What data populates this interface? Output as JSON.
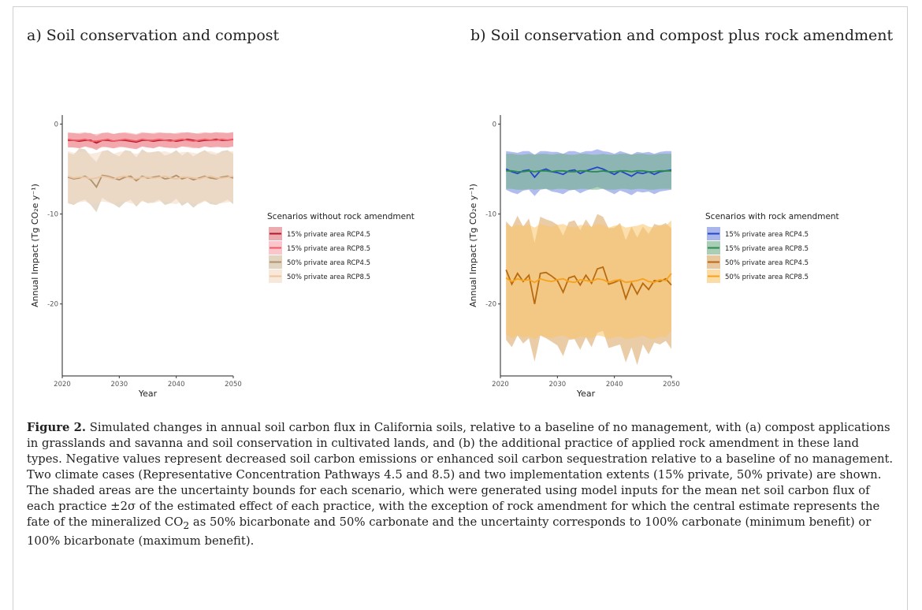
{
  "panel_a_title": "a) Soil conservation and compost",
  "panel_b_title": "b) Soil conservation and compost plus rock amendment",
  "caption": {
    "label": "Figure 2.",
    "text_1": " Simulated changes in annual soil carbon flux in California soils, relative to a baseline of no management, with (a) compost applications in grasslands and savanna and soil conservation in cultivated lands, and (b) the additional practice of applied rock amendment in these land types. Negative values represent decreased soil carbon emissions or enhanced soil carbon sequestration relative to a baseline of no management. Two climate cases (Representative Concentration Pathways 4.5 and 8.5) and two implementation extents (15% private, 50% private) are shown. The shaded areas are the uncertainty bounds for each scenario, which were generated using model inputs for the mean net soil carbon flux of each practice ±2σ of the estimated effect of each practice, with the exception of rock amendment for which the central estimate represents the fate of the mineralized CO",
    "sub": "2",
    "text_2": " as 50% bicarbonate and 50% carbonate and the uncertainty corresponds to 100% carbonate (minimum benefit) or 100% bicarbonate (maximum benefit)."
  },
  "chart_data": [
    {
      "type": "line",
      "xlabel": "Year",
      "ylabel": "Annual Impact (Tg CO₂e y⁻¹)",
      "xlim": [
        2020,
        2050
      ],
      "ylim": [
        -28,
        1
      ],
      "xticks": [
        2020,
        2030,
        2040,
        2050
      ],
      "yticks": [
        0,
        -10,
        -20
      ],
      "grid": false,
      "legend_title": "Scenarios without rock amendment",
      "legend_position": "right",
      "x": [
        2021,
        2022,
        2023,
        2024,
        2025,
        2026,
        2027,
        2028,
        2029,
        2030,
        2031,
        2032,
        2033,
        2034,
        2035,
        2036,
        2037,
        2038,
        2039,
        2040,
        2041,
        2042,
        2043,
        2044,
        2045,
        2046,
        2047,
        2048,
        2049,
        2050
      ],
      "series": [
        {
          "name": "15% private area RCP4.5",
          "color": "#b2182b",
          "band_color": "#e0737a",
          "values": [
            -1.8,
            -1.8,
            -1.9,
            -1.8,
            -1.8,
            -2.1,
            -1.8,
            -1.8,
            -1.9,
            -1.8,
            -1.8,
            -1.9,
            -2.0,
            -1.8,
            -1.8,
            -1.9,
            -1.8,
            -1.8,
            -1.8,
            -1.9,
            -1.8,
            -1.7,
            -1.8,
            -1.9,
            -1.8,
            -1.8,
            -1.7,
            -1.8,
            -1.8,
            -1.7
          ],
          "lower": [
            -2.6,
            -2.6,
            -2.7,
            -2.5,
            -2.6,
            -2.9,
            -2.5,
            -2.6,
            -2.7,
            -2.5,
            -2.6,
            -2.7,
            -2.8,
            -2.5,
            -2.6,
            -2.7,
            -2.5,
            -2.6,
            -2.6,
            -2.7,
            -2.5,
            -2.5,
            -2.6,
            -2.7,
            -2.5,
            -2.6,
            -2.5,
            -2.6,
            -2.6,
            -2.5
          ],
          "upper": [
            -1.0,
            -1.0,
            -1.1,
            -1.0,
            -1.0,
            -1.3,
            -1.0,
            -1.0,
            -1.1,
            -1.0,
            -1.0,
            -1.1,
            -1.2,
            -1.0,
            -1.0,
            -1.1,
            -1.0,
            -1.0,
            -1.0,
            -1.1,
            -1.0,
            -0.9,
            -1.0,
            -1.1,
            -1.0,
            -1.0,
            -0.9,
            -1.0,
            -1.0,
            -0.9
          ]
        },
        {
          "name": "15% private area RCP8.5",
          "color": "#f05a66",
          "band_color": "#f7a0a8",
          "values": [
            -1.7,
            -1.8,
            -1.8,
            -1.7,
            -1.9,
            -1.9,
            -1.8,
            -1.7,
            -1.9,
            -1.8,
            -1.7,
            -1.8,
            -1.9,
            -1.7,
            -1.8,
            -1.8,
            -1.7,
            -1.8,
            -1.9,
            -1.8,
            -1.7,
            -1.8,
            -1.9,
            -1.8,
            -1.7,
            -1.8,
            -1.8,
            -1.7,
            -1.8,
            -1.7
          ],
          "lower": [
            -2.5,
            -2.6,
            -2.6,
            -2.5,
            -2.7,
            -2.7,
            -2.6,
            -2.5,
            -2.7,
            -2.6,
            -2.5,
            -2.6,
            -2.7,
            -2.5,
            -2.6,
            -2.6,
            -2.5,
            -2.6,
            -2.7,
            -2.6,
            -2.5,
            -2.6,
            -2.7,
            -2.6,
            -2.5,
            -2.6,
            -2.6,
            -2.5,
            -2.6,
            -2.5
          ],
          "upper": [
            -0.9,
            -1.0,
            -1.0,
            -0.9,
            -1.1,
            -1.1,
            -1.0,
            -0.9,
            -1.1,
            -1.0,
            -0.9,
            -1.0,
            -1.1,
            -0.9,
            -1.0,
            -1.0,
            -0.9,
            -1.0,
            -1.1,
            -1.0,
            -0.9,
            -1.0,
            -1.1,
            -1.0,
            -0.9,
            -1.0,
            -1.0,
            -0.9,
            -1.0,
            -0.9
          ]
        },
        {
          "name": "50% private area RCP4.5",
          "color": "#b0926a",
          "band_color": "#cdb99a",
          "values": [
            -5.9,
            -6.1,
            -6.0,
            -5.8,
            -6.2,
            -7.0,
            -5.7,
            -5.8,
            -6.0,
            -6.2,
            -5.9,
            -5.8,
            -6.3,
            -5.8,
            -6.0,
            -5.9,
            -5.8,
            -6.1,
            -6.0,
            -5.7,
            -6.1,
            -5.9,
            -6.2,
            -6.0,
            -5.8,
            -6.0,
            -6.1,
            -5.9,
            -5.8,
            -6.0
          ],
          "lower": [
            -8.8,
            -9.0,
            -8.6,
            -8.4,
            -9.0,
            -9.8,
            -8.2,
            -8.6,
            -8.9,
            -9.3,
            -8.7,
            -8.4,
            -9.2,
            -8.5,
            -8.8,
            -8.7,
            -8.4,
            -9.0,
            -8.8,
            -8.3,
            -9.1,
            -8.7,
            -9.3,
            -8.8,
            -8.5,
            -8.9,
            -9.0,
            -8.7,
            -8.4,
            -8.9
          ],
          "upper": [
            -3.2,
            -3.4,
            -2.7,
            -2.8,
            -3.6,
            -4.2,
            -3.0,
            -2.9,
            -3.3,
            -3.6,
            -2.9,
            -3.0,
            -3.7,
            -2.8,
            -3.2,
            -3.1,
            -3.0,
            -3.5,
            -3.3,
            -2.9,
            -3.5,
            -3.1,
            -3.6,
            -3.2,
            -2.9,
            -3.3,
            -3.4,
            -3.0,
            -2.9,
            -3.3
          ]
        },
        {
          "name": "50% private area RCP8.5",
          "color": "#ecc4a2",
          "band_color": "#f3d8c2",
          "values": [
            -5.8,
            -6.0,
            -5.9,
            -5.9,
            -6.1,
            -6.0,
            -5.8,
            -5.9,
            -6.1,
            -5.9,
            -5.8,
            -6.0,
            -6.1,
            -5.9,
            -5.9,
            -6.0,
            -5.9,
            -5.8,
            -6.0,
            -6.1,
            -5.9,
            -5.9,
            -6.0,
            -6.1,
            -5.9,
            -5.8,
            -6.0,
            -6.0,
            -5.9,
            -5.8
          ],
          "lower": [
            -8.6,
            -8.8,
            -8.7,
            -8.6,
            -8.9,
            -8.8,
            -8.6,
            -8.7,
            -8.9,
            -8.6,
            -8.6,
            -8.8,
            -8.9,
            -8.6,
            -8.7,
            -8.8,
            -8.6,
            -8.6,
            -8.8,
            -8.9,
            -8.6,
            -8.7,
            -8.8,
            -8.9,
            -8.6,
            -8.6,
            -8.8,
            -8.8,
            -8.7,
            -8.6
          ],
          "upper": [
            -3.0,
            -3.2,
            -3.1,
            -3.1,
            -3.3,
            -3.2,
            -3.0,
            -3.1,
            -3.3,
            -3.1,
            -3.0,
            -3.2,
            -3.3,
            -3.1,
            -3.1,
            -3.2,
            -3.1,
            -3.0,
            -3.2,
            -3.3,
            -3.1,
            -3.1,
            -3.2,
            -3.3,
            -3.1,
            -3.0,
            -3.2,
            -3.2,
            -3.1,
            -3.0
          ]
        }
      ]
    },
    {
      "type": "line",
      "xlabel": "Year",
      "ylabel": "Annual Impact (Tg CO₂e y⁻¹)",
      "xlim": [
        2020,
        2050
      ],
      "ylim": [
        -28,
        1
      ],
      "xticks": [
        2020,
        2030,
        2040,
        2050
      ],
      "yticks": [
        0,
        -10,
        -20
      ],
      "grid": false,
      "legend_title": "Scenarios with rock amendment",
      "legend_position": "right",
      "x": [
        2021,
        2022,
        2023,
        2024,
        2025,
        2026,
        2027,
        2028,
        2029,
        2030,
        2031,
        2032,
        2033,
        2034,
        2035,
        2036,
        2037,
        2038,
        2039,
        2040,
        2041,
        2042,
        2043,
        2044,
        2045,
        2046,
        2047,
        2048,
        2049,
        2050
      ],
      "series": [
        {
          "name": "15% private area RCP4.5",
          "color": "#2447c8",
          "band_color": "#6f86e0",
          "values": [
            -5.0,
            -5.3,
            -5.5,
            -5.2,
            -5.1,
            -5.9,
            -5.2,
            -5.0,
            -5.3,
            -5.4,
            -5.6,
            -5.2,
            -5.1,
            -5.5,
            -5.2,
            -5.0,
            -4.8,
            -5.0,
            -5.3,
            -5.6,
            -5.2,
            -5.5,
            -5.8,
            -5.4,
            -5.5,
            -5.3,
            -5.6,
            -5.3,
            -5.2,
            -5.1
          ],
          "lower": [
            -7.3,
            -7.6,
            -7.8,
            -7.4,
            -7.3,
            -8.0,
            -7.3,
            -7.2,
            -7.5,
            -7.6,
            -7.8,
            -7.4,
            -7.3,
            -7.7,
            -7.4,
            -7.2,
            -7.0,
            -7.2,
            -7.5,
            -7.8,
            -7.4,
            -7.6,
            -7.9,
            -7.5,
            -7.6,
            -7.5,
            -7.8,
            -7.5,
            -7.4,
            -7.3
          ],
          "upper": [
            -3.0,
            -3.1,
            -3.2,
            -3.0,
            -3.0,
            -3.4,
            -3.0,
            -3.0,
            -3.1,
            -3.1,
            -3.3,
            -3.0,
            -3.0,
            -3.2,
            -3.0,
            -3.0,
            -2.8,
            -3.0,
            -3.1,
            -3.3,
            -3.0,
            -3.2,
            -3.4,
            -3.1,
            -3.2,
            -3.1,
            -3.3,
            -3.1,
            -3.0,
            -3.0
          ]
        },
        {
          "name": "15% private area RCP8.5",
          "color": "#2b8a4f",
          "band_color": "#6fae84",
          "values": [
            -5.2,
            -5.2,
            -5.3,
            -5.3,
            -5.2,
            -5.3,
            -5.2,
            -5.2,
            -5.3,
            -5.2,
            -5.2,
            -5.3,
            -5.3,
            -5.2,
            -5.2,
            -5.3,
            -5.3,
            -5.2,
            -5.3,
            -5.3,
            -5.2,
            -5.2,
            -5.3,
            -5.2,
            -5.2,
            -5.3,
            -5.3,
            -5.2,
            -5.2,
            -5.2
          ],
          "lower": [
            -7.2,
            -7.2,
            -7.3,
            -7.3,
            -7.2,
            -7.3,
            -7.2,
            -7.2,
            -7.3,
            -7.2,
            -7.2,
            -7.3,
            -7.3,
            -7.2,
            -7.2,
            -7.3,
            -7.3,
            -7.2,
            -7.3,
            -7.3,
            -7.2,
            -7.2,
            -7.3,
            -7.2,
            -7.2,
            -7.3,
            -7.3,
            -7.2,
            -7.2,
            -7.2
          ],
          "upper": [
            -3.3,
            -3.3,
            -3.4,
            -3.4,
            -3.3,
            -3.4,
            -3.3,
            -3.3,
            -3.4,
            -3.3,
            -3.3,
            -3.4,
            -3.4,
            -3.3,
            -3.3,
            -3.4,
            -3.4,
            -3.3,
            -3.4,
            -3.4,
            -3.3,
            -3.3,
            -3.4,
            -3.3,
            -3.3,
            -3.4,
            -3.4,
            -3.3,
            -3.3,
            -3.3
          ]
        },
        {
          "name": "50% private area RCP4.5",
          "color": "#b86a0f",
          "band_color": "#d9a25f",
          "values": [
            -16.2,
            -17.8,
            -16.6,
            -17.5,
            -16.8,
            -20.0,
            -16.6,
            -16.5,
            -16.9,
            -17.4,
            -18.7,
            -17.1,
            -16.9,
            -17.9,
            -16.8,
            -17.7,
            -16.1,
            -15.9,
            -17.8,
            -17.6,
            -17.3,
            -19.4,
            -17.7,
            -18.9,
            -17.7,
            -18.4,
            -17.4,
            -17.5,
            -17.2,
            -17.9
          ],
          "lower": [
            -24.0,
            -24.8,
            -23.5,
            -24.4,
            -23.8,
            -26.4,
            -23.5,
            -23.8,
            -24.2,
            -24.6,
            -25.8,
            -24.0,
            -23.9,
            -25.1,
            -23.7,
            -24.8,
            -23.2,
            -23.0,
            -24.9,
            -24.7,
            -24.5,
            -26.5,
            -24.8,
            -26.8,
            -24.5,
            -25.6,
            -24.3,
            -24.5,
            -24.1,
            -25.0
          ],
          "upper": [
            -10.8,
            -11.5,
            -10.2,
            -11.4,
            -10.5,
            -13.2,
            -10.3,
            -10.6,
            -10.8,
            -11.2,
            -12.4,
            -10.9,
            -10.7,
            -11.8,
            -10.6,
            -11.5,
            -10.0,
            -10.3,
            -11.6,
            -11.5,
            -11.0,
            -12.9,
            -11.4,
            -12.6,
            -11.4,
            -12.2,
            -11.1,
            -11.3,
            -11.0,
            -11.6
          ]
        },
        {
          "name": "50% private area RCP8.5",
          "color": "#f7a21b",
          "band_color": "#f9c46a",
          "values": [
            -17.1,
            -17.5,
            -17.2,
            -17.4,
            -17.3,
            -17.6,
            -17.2,
            -17.4,
            -17.5,
            -17.3,
            -17.2,
            -17.5,
            -17.6,
            -17.3,
            -17.4,
            -17.5,
            -17.2,
            -17.3,
            -17.6,
            -17.4,
            -17.3,
            -17.6,
            -17.5,
            -17.4,
            -17.2,
            -17.5,
            -17.6,
            -17.3,
            -17.4,
            -16.6
          ],
          "lower": [
            -23.4,
            -23.8,
            -23.5,
            -23.7,
            -23.6,
            -23.9,
            -23.5,
            -23.7,
            -23.8,
            -23.6,
            -23.5,
            -23.8,
            -23.9,
            -23.6,
            -23.7,
            -23.8,
            -23.5,
            -23.6,
            -23.9,
            -23.7,
            -23.6,
            -23.9,
            -23.8,
            -23.7,
            -23.5,
            -23.8,
            -23.9,
            -23.6,
            -23.7,
            -23.0
          ],
          "upper": [
            -11.1,
            -11.4,
            -11.2,
            -11.3,
            -11.2,
            -11.5,
            -11.1,
            -11.3,
            -11.4,
            -11.2,
            -11.1,
            -11.4,
            -11.5,
            -11.2,
            -11.3,
            -11.4,
            -11.1,
            -11.2,
            -11.5,
            -11.3,
            -11.2,
            -11.5,
            -11.4,
            -11.3,
            -11.1,
            -11.4,
            -11.5,
            -11.2,
            -11.3,
            -10.7
          ]
        }
      ]
    }
  ]
}
